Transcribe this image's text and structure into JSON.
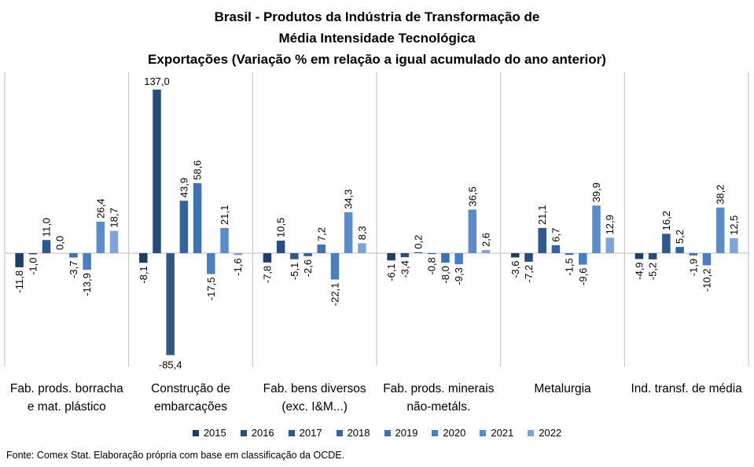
{
  "title_lines": [
    "Brasil - Produtos da Indústria de Transformação de",
    "Média Intensidade Tecnológica",
    "Exportações (Variação % em relação a igual acumulado do ano anterior)"
  ],
  "source": "Fonte: Comex Stat. Elaboração própria com base em classificação da OCDE.",
  "chart_data": {
    "type": "bar",
    "title": "Brasil - Produtos da Indústria de Transformação de Média Intensidade Tecnológica Exportações (Variação % em relação a igual acumulado do ano anterior)",
    "categories": [
      [
        "Fab. prods. borracha",
        "e mat. plástico"
      ],
      [
        "Construção de",
        "embarcações"
      ],
      [
        "Fab. bens diversos",
        "(exc. I&M...)"
      ],
      [
        "Fab. prods. minerais",
        "não-metáls."
      ],
      [
        "Metalurgia"
      ],
      [
        "Ind. transf. de média"
      ]
    ],
    "series": [
      {
        "name": "2015",
        "color": "#1f3e65",
        "values": [
          -11.8,
          -8.1,
          -7.8,
          -6.1,
          -3.6,
          -4.9
        ]
      },
      {
        "name": "2016",
        "color": "#284d7c",
        "values": [
          -1.0,
          137.0,
          10.5,
          -3.4,
          -7.2,
          -5.2
        ]
      },
      {
        "name": "2017",
        "color": "#2e5990",
        "values": [
          11.0,
          -85.4,
          -5.1,
          0.2,
          21.1,
          16.2
        ]
      },
      {
        "name": "2018",
        "color": "#3464a0",
        "values": [
          0.0,
          43.9,
          -2.6,
          -0.8,
          6.7,
          5.2
        ]
      },
      {
        "name": "2019",
        "color": "#3e72b2",
        "values": [
          -3.7,
          58.6,
          7.2,
          -8.0,
          -1.5,
          -1.9
        ]
      },
      {
        "name": "2020",
        "color": "#4a7ec2",
        "values": [
          -13.9,
          -17.5,
          -22.1,
          -9.3,
          -9.6,
          -10.2
        ]
      },
      {
        "name": "2021",
        "color": "#5a8bcb",
        "values": [
          26.4,
          21.1,
          34.3,
          36.5,
          39.9,
          38.2
        ]
      },
      {
        "name": "2022",
        "color": "#7ea3d6",
        "values": [
          18.7,
          -1.6,
          8.3,
          2.6,
          12.9,
          12.5
        ]
      }
    ],
    "value_labels": [
      [
        "-11,8",
        "-1,0",
        "11,0",
        "0,0",
        "-3,7",
        "-13,9",
        "26,4",
        "18,7"
      ],
      [
        "-8,1",
        "137,0",
        "-85,4",
        "43,9",
        "58,6",
        "-17,5",
        "21,1",
        "-1,6"
      ],
      [
        "-7,8",
        "10,5",
        "-5,1",
        "-2,6",
        "7,2",
        "-22,1",
        "34,3",
        "8,3"
      ],
      [
        "-6,1",
        "-3,4",
        "0,2",
        "-0,8",
        "-8,0",
        "-9,3",
        "36,5",
        "2,6"
      ],
      [
        "-3,6",
        "-7,2",
        "21,1",
        "6,7",
        "-1,5",
        "-9,6",
        "39,9",
        "12,9"
      ],
      [
        "-4,9",
        "-5,2",
        "16,2",
        "5,2",
        "-1,9",
        "-10,2",
        "38,2",
        "12,5"
      ]
    ],
    "label_orientation": [
      "rotated",
      "horizontal",
      "horizontal",
      "rotated",
      "rotated",
      "rotated"
    ],
    "ylim": [
      -85.4,
      137.0
    ],
    "grid": false,
    "category_separators": true,
    "legend_position": "bottom"
  }
}
